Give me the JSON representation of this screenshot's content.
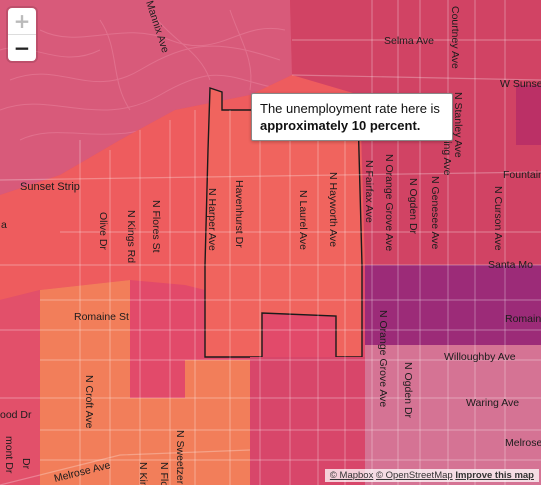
{
  "colors": {
    "rate_low": "#f27e5a",
    "rate_mid": "#f0645e",
    "rate_high": "#e24a6a",
    "rate_higher": "#d14364",
    "rate_highest": "#9c2b78",
    "rate_pink": "#d57394"
  },
  "zoom": {
    "in_label": "+",
    "out_label": "−"
  },
  "tooltip": {
    "text": "The unemployment rate here is",
    "bold": "approximately 10 percent.",
    "rate_percent": 10
  },
  "labels": {
    "mannix": "Mannix Ave",
    "selma": "Selma Ave",
    "courtney": "Courtney Ave",
    "w_sunset": "W Sunse",
    "n_spaulding": "N Spaulding Ave",
    "n_stanley": "N Stanley Ave",
    "sunset_strip": "Sunset Strip",
    "fountain": "Fountain",
    "olive": "Olive Dr",
    "n_kings": "N Kings Rd",
    "n_flores": "N Flores St",
    "n_harper": "N Harper Ave",
    "havenhurst": "Havenhurst Dr",
    "n_laurel": "N Laurel Ave",
    "n_hayworth": "N Hayworth Ave",
    "n_fairfax": "N Fairfax Ave",
    "n_orange_grove_top": "N Orange Grove Ave",
    "n_ogden_top": "N Ogden Dr",
    "n_genesee": "N Genesee Ave",
    "n_curson": "N Curson Ave",
    "santa_monica": "Santa Mo",
    "romaine_left": "Romaine St",
    "romaine_right": "Romaine",
    "willoughby": "Willoughby Ave",
    "n_orange_grove_bot": "N Orange Grove Ave",
    "n_ogden_bot": "N Ogden Dr",
    "waring": "Waring Ave",
    "n_croft": "N Croft Ave",
    "melrose_left": "Melrose Ave",
    "melrose_right": "Melrose",
    "sweetzer": "N Sweetzer Ave",
    "n_kin": "N Kin",
    "n_flo": "N Flo",
    "left_a": "a",
    "left_mont": "mont Dr",
    "left_ood": "ood Dr",
    "left_dr": "Dr"
  },
  "attribution": {
    "mapbox": "© Mapbox",
    "osm": "© OpenStreetMap",
    "improve": "Improve this map"
  }
}
